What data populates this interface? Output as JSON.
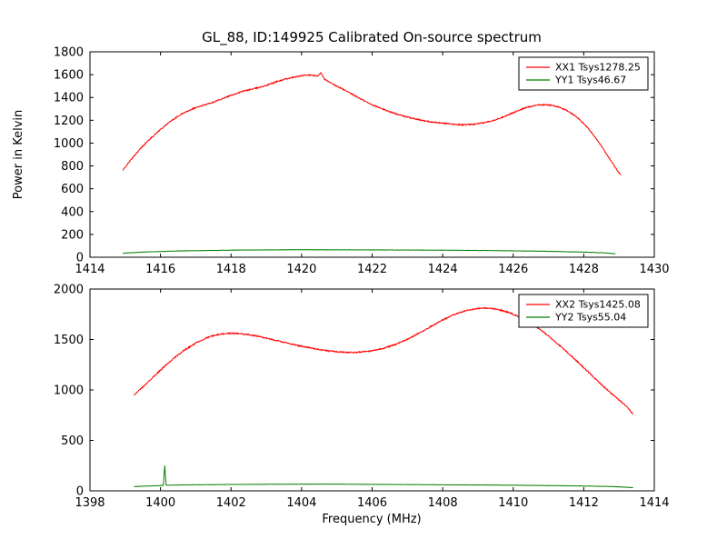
{
  "title": "GL_88, ID:149925 Calibrated On-source spectrum",
  "chart_data": [
    {
      "type": "line",
      "title": "",
      "xlabel": "",
      "ylabel": "Power in Kelvin",
      "xlim": [
        1414,
        1430
      ],
      "ylim": [
        0,
        1800
      ],
      "xticks": [
        1414,
        1416,
        1418,
        1420,
        1422,
        1424,
        1426,
        1428,
        1430
      ],
      "yticks": [
        0,
        200,
        400,
        600,
        800,
        1000,
        1200,
        1400,
        1600,
        1800
      ],
      "grid": false,
      "legend_position": "upper right",
      "series": [
        {
          "name": "XX1 Tsys1278.25",
          "color": "#ff0000",
          "noise": 5,
          "points": [
            [
              1414.93,
              760
            ],
            [
              1415.1,
              830
            ],
            [
              1415.3,
              905
            ],
            [
              1415.5,
              975
            ],
            [
              1415.75,
              1050
            ],
            [
              1416.0,
              1120
            ],
            [
              1416.3,
              1195
            ],
            [
              1416.6,
              1255
            ],
            [
              1416.9,
              1300
            ],
            [
              1417.2,
              1330
            ],
            [
              1417.5,
              1360
            ],
            [
              1417.8,
              1395
            ],
            [
              1418.1,
              1430
            ],
            [
              1418.4,
              1460
            ],
            [
              1418.7,
              1480
            ],
            [
              1419.0,
              1505
            ],
            [
              1419.3,
              1540
            ],
            [
              1419.6,
              1565
            ],
            [
              1419.9,
              1585
            ],
            [
              1420.1,
              1595
            ],
            [
              1420.3,
              1595
            ],
            [
              1420.45,
              1585
            ],
            [
              1420.55,
              1620
            ],
            [
              1420.65,
              1560
            ],
            [
              1420.8,
              1530
            ],
            [
              1421.0,
              1500
            ],
            [
              1421.3,
              1450
            ],
            [
              1421.6,
              1400
            ],
            [
              1421.9,
              1350
            ],
            [
              1422.2,
              1310
            ],
            [
              1422.5,
              1275
            ],
            [
              1422.8,
              1245
            ],
            [
              1423.1,
              1220
            ],
            [
              1423.4,
              1200
            ],
            [
              1423.7,
              1185
            ],
            [
              1424.0,
              1175
            ],
            [
              1424.3,
              1165
            ],
            [
              1424.6,
              1160
            ],
            [
              1424.9,
              1165
            ],
            [
              1425.2,
              1180
            ],
            [
              1425.5,
              1205
            ],
            [
              1425.8,
              1240
            ],
            [
              1426.1,
              1280
            ],
            [
              1426.4,
              1315
            ],
            [
              1426.7,
              1335
            ],
            [
              1427.0,
              1335
            ],
            [
              1427.2,
              1325
            ],
            [
              1427.5,
              1290
            ],
            [
              1427.8,
              1230
            ],
            [
              1428.1,
              1140
            ],
            [
              1428.4,
              1020
            ],
            [
              1428.7,
              880
            ],
            [
              1428.95,
              760
            ],
            [
              1429.05,
              720
            ]
          ]
        },
        {
          "name": "YY1 Tsys46.67",
          "color": "#007f00",
          "noise": 1.5,
          "points": [
            [
              1414.93,
              35
            ],
            [
              1415.5,
              45
            ],
            [
              1416.5,
              55
            ],
            [
              1418.0,
              62
            ],
            [
              1420.0,
              66
            ],
            [
              1422.0,
              64
            ],
            [
              1424.0,
              62
            ],
            [
              1425.5,
              58
            ],
            [
              1427.0,
              52
            ],
            [
              1428.0,
              45
            ],
            [
              1428.6,
              38
            ],
            [
              1428.9,
              30
            ]
          ]
        }
      ]
    },
    {
      "type": "line",
      "title": "",
      "xlabel": "Frequency (MHz)",
      "ylabel": "",
      "xlim": [
        1398,
        1414
      ],
      "ylim": [
        0,
        2000
      ],
      "xticks": [
        1398,
        1400,
        1402,
        1404,
        1406,
        1408,
        1410,
        1412,
        1414
      ],
      "yticks": [
        0,
        500,
        1000,
        1500,
        2000
      ],
      "grid": false,
      "legend_position": "upper right",
      "series": [
        {
          "name": "XX2 Tsys1425.08",
          "color": "#ff0000",
          "noise": 6,
          "points": [
            [
              1399.25,
              950
            ],
            [
              1399.5,
              1030
            ],
            [
              1399.8,
              1130
            ],
            [
              1400.1,
              1230
            ],
            [
              1400.4,
              1320
            ],
            [
              1400.7,
              1400
            ],
            [
              1401.0,
              1465
            ],
            [
              1401.3,
              1515
            ],
            [
              1401.6,
              1548
            ],
            [
              1401.9,
              1562
            ],
            [
              1402.2,
              1560
            ],
            [
              1402.5,
              1548
            ],
            [
              1402.8,
              1530
            ],
            [
              1403.1,
              1505
            ],
            [
              1403.5,
              1472
            ],
            [
              1403.9,
              1440
            ],
            [
              1404.3,
              1412
            ],
            [
              1404.7,
              1390
            ],
            [
              1405.1,
              1375
            ],
            [
              1405.5,
              1372
            ],
            [
              1405.9,
              1382
            ],
            [
              1406.3,
              1410
            ],
            [
              1406.7,
              1455
            ],
            [
              1407.1,
              1520
            ],
            [
              1407.5,
              1595
            ],
            [
              1407.9,
              1675
            ],
            [
              1408.3,
              1745
            ],
            [
              1408.7,
              1790
            ],
            [
              1409.0,
              1808
            ],
            [
              1409.3,
              1810
            ],
            [
              1409.6,
              1795
            ],
            [
              1409.9,
              1765
            ],
            [
              1410.2,
              1720
            ],
            [
              1410.5,
              1660
            ],
            [
              1410.8,
              1590
            ],
            [
              1411.1,
              1505
            ],
            [
              1411.4,
              1415
            ],
            [
              1411.7,
              1320
            ],
            [
              1412.0,
              1220
            ],
            [
              1412.3,
              1120
            ],
            [
              1412.6,
              1020
            ],
            [
              1412.9,
              930
            ],
            [
              1413.2,
              840
            ],
            [
              1413.4,
              760
            ]
          ]
        },
        {
          "name": "YY2 Tsys55.04",
          "color": "#007f00",
          "noise": 1.5,
          "points": [
            [
              1399.25,
              42
            ],
            [
              1399.7,
              48
            ],
            [
              1400.0,
              52
            ],
            [
              1400.08,
              55
            ],
            [
              1400.12,
              250
            ],
            [
              1400.16,
              55
            ],
            [
              1400.5,
              58
            ],
            [
              1401.0,
              60
            ],
            [
              1402.0,
              63
            ],
            [
              1403.0,
              65
            ],
            [
              1404.0,
              66
            ],
            [
              1405.0,
              66
            ],
            [
              1406.0,
              64
            ],
            [
              1407.0,
              62
            ],
            [
              1408.0,
              60
            ],
            [
              1409.0,
              58
            ],
            [
              1410.0,
              56
            ],
            [
              1411.0,
              52
            ],
            [
              1412.0,
              48
            ],
            [
              1412.8,
              42
            ],
            [
              1413.4,
              32
            ]
          ]
        }
      ]
    }
  ]
}
